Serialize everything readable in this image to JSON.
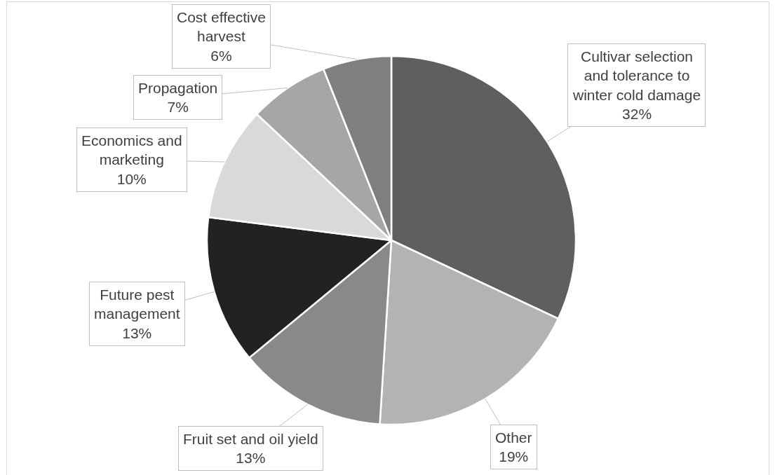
{
  "chart_data": {
    "type": "pie",
    "categories": [
      "Cultivar selection and tolerance to winter cold damage",
      "Other",
      "Fruit set and oil yield",
      "Future pest management",
      "Economics and marketing",
      "Propagation",
      "Cost effective harvest"
    ],
    "values": [
      32,
      19,
      13,
      13,
      10,
      7,
      6
    ],
    "value_labels": [
      "32%",
      "19%",
      "13%",
      "13%",
      "10%",
      "7%",
      "6%"
    ],
    "colors": [
      "#5f5f5f",
      "#b3b3b3",
      "#898989",
      "#222222",
      "#d9d9d9",
      "#a6a6a6",
      "#7f7f7f"
    ]
  }
}
